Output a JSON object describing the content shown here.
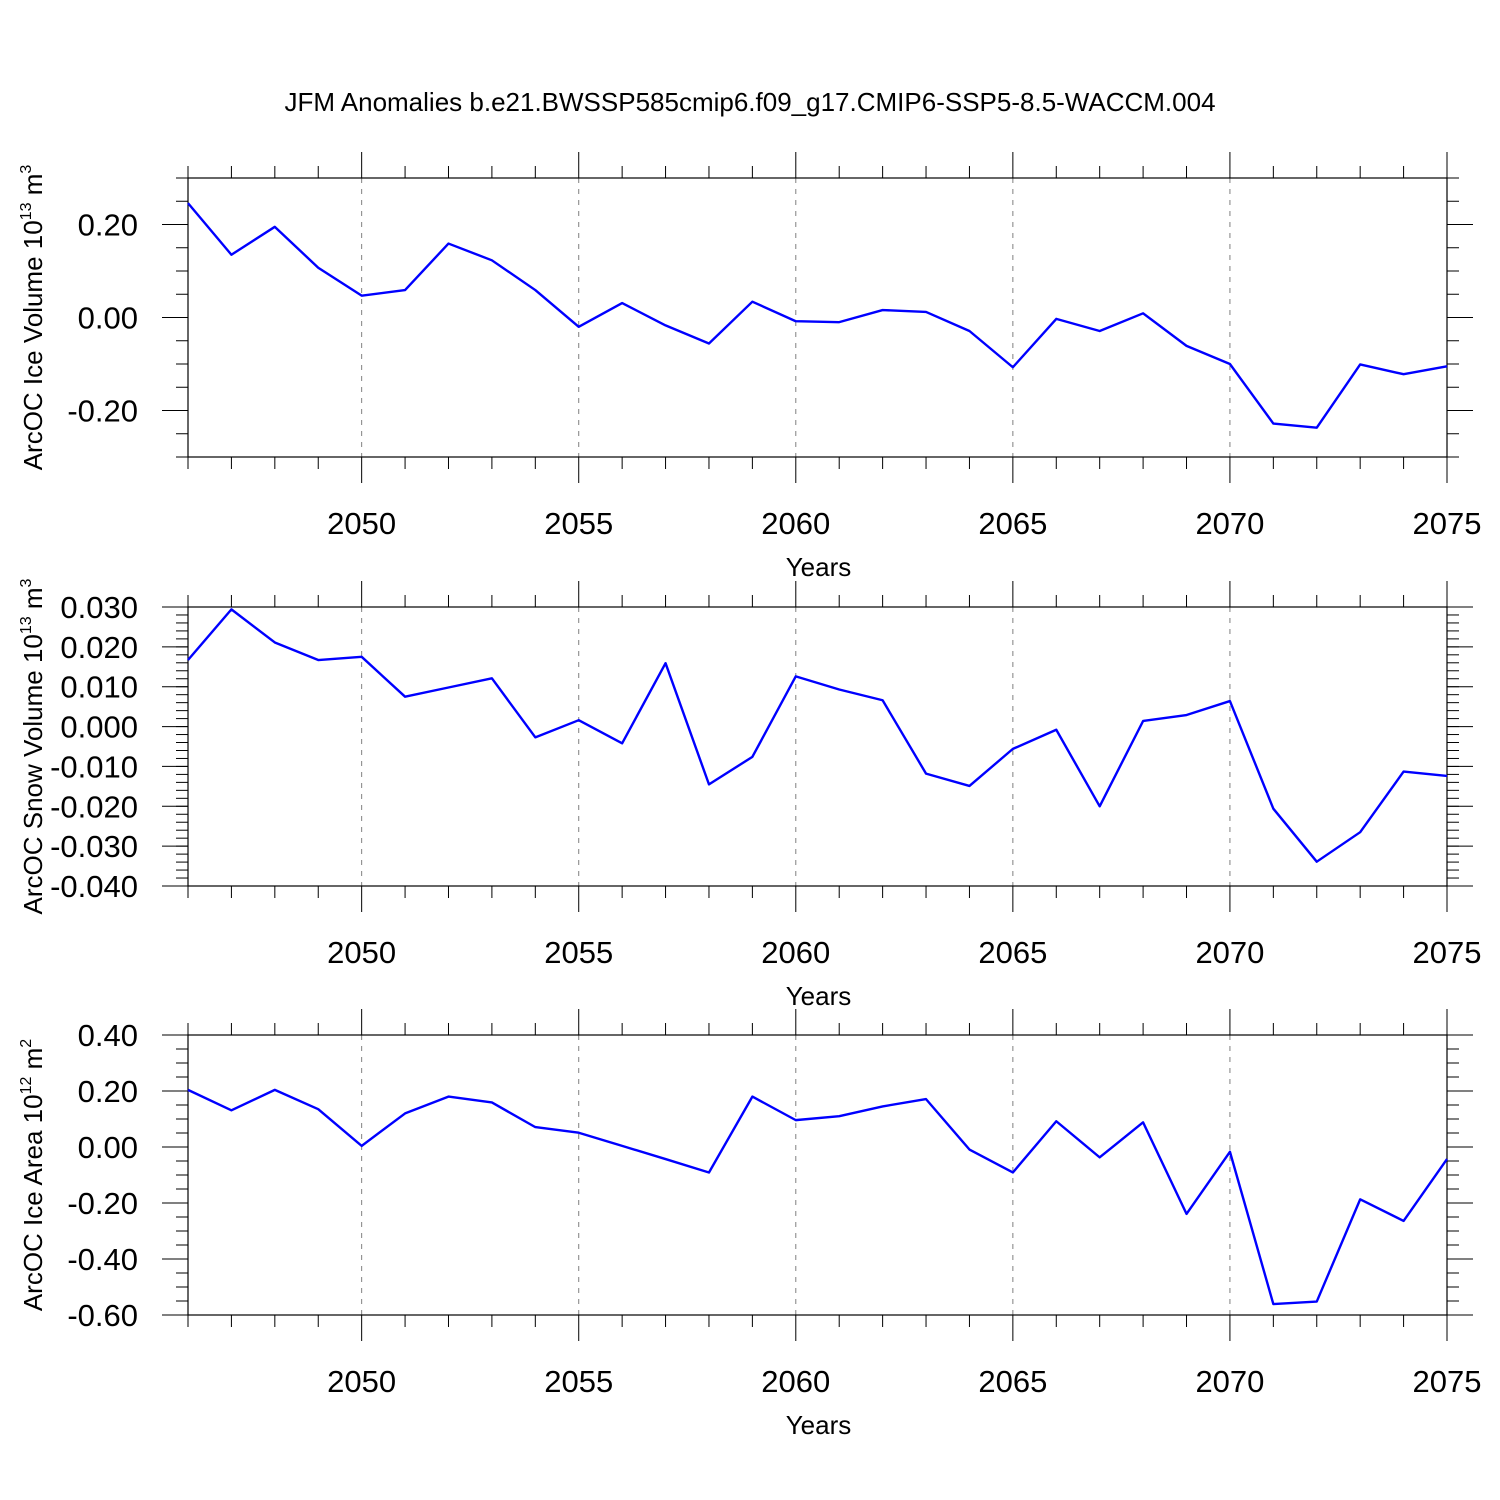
{
  "figure_title": "JFM Anomalies b.e21.BWSSP585cmip6.f09_g17.CMIP6-SSP5-8.5-WACCM.004",
  "colors": {
    "line": "#0000ff",
    "axis": "#000000",
    "grid": "#808080",
    "background": "#ffffff"
  },
  "chart_data": [
    {
      "type": "line",
      "title": "",
      "xlabel": "Years",
      "ylabel": {
        "text": "ArcOC Ice Volume 10",
        "sup": "13",
        "unit": " m",
        "unit_sup": "3"
      },
      "xlim": [
        2046,
        2075
      ],
      "ylim": [
        -0.3,
        0.3
      ],
      "x_ticks": [
        2050,
        2055,
        2060,
        2065,
        2070,
        2075
      ],
      "x_tick_labels": [
        "2050",
        "2055",
        "2060",
        "2065",
        "2070",
        "2075"
      ],
      "y_ticks": [
        -0.2,
        0.0,
        0.2
      ],
      "y_tick_labels": [
        "-0.20",
        "0.00",
        "0.20"
      ],
      "y_minor_step": 0.05,
      "grid": "vertical dashed at major x ticks",
      "x": [
        2046,
        2047,
        2048,
        2049,
        2050,
        2051,
        2052,
        2053,
        2054,
        2055,
        2056,
        2057,
        2058,
        2059,
        2060,
        2061,
        2062,
        2063,
        2064,
        2065,
        2066,
        2067,
        2068,
        2069,
        2070,
        2071,
        2072,
        2073,
        2074,
        2075
      ],
      "series": [
        {
          "values": [
            0.246,
            0.135,
            0.195,
            0.107,
            0.047,
            0.059,
            0.159,
            0.123,
            0.059,
            -0.02,
            0.031,
            -0.017,
            -0.056,
            0.034,
            -0.008,
            -0.01,
            0.016,
            0.012,
            -0.029,
            -0.107,
            -0.003,
            -0.029,
            0.009,
            -0.061,
            -0.1,
            -0.228,
            -0.237,
            -0.101,
            -0.122,
            -0.105
          ]
        }
      ]
    },
    {
      "type": "line",
      "title": "",
      "xlabel": "Years",
      "ylabel": {
        "text": "ArcOC Snow Volume 10",
        "sup": "13",
        "unit": " m",
        "unit_sup": "3"
      },
      "xlim": [
        2046,
        2075
      ],
      "ylim": [
        -0.04,
        0.03
      ],
      "x_ticks": [
        2050,
        2055,
        2060,
        2065,
        2070,
        2075
      ],
      "x_tick_labels": [
        "2050",
        "2055",
        "2060",
        "2065",
        "2070",
        "2075"
      ],
      "y_ticks": [
        -0.04,
        -0.03,
        -0.02,
        -0.01,
        0.0,
        0.01,
        0.02,
        0.03
      ],
      "y_tick_labels": [
        "-0.040",
        "-0.030",
        "-0.020",
        "-0.010",
        "0.000",
        "0.010",
        "0.020",
        "0.030"
      ],
      "y_minor_step": 0.002,
      "grid": "vertical dashed at major x ticks",
      "x": [
        2046,
        2047,
        2048,
        2049,
        2050,
        2051,
        2052,
        2053,
        2054,
        2055,
        2056,
        2057,
        2058,
        2059,
        2060,
        2061,
        2062,
        2063,
        2064,
        2065,
        2066,
        2067,
        2068,
        2069,
        2070,
        2071,
        2072,
        2073,
        2074,
        2075
      ],
      "series": [
        {
          "values": [
            0.0167,
            0.0294,
            0.0211,
            0.0167,
            0.0175,
            0.0075,
            0.0098,
            0.0121,
            -0.0027,
            0.0016,
            -0.0042,
            0.0159,
            -0.0145,
            -0.0076,
            0.0126,
            0.0093,
            0.0066,
            -0.0118,
            -0.0149,
            -0.0056,
            -0.0008,
            -0.02,
            0.0014,
            0.0029,
            0.0064,
            -0.0206,
            -0.0339,
            -0.0265,
            -0.0113,
            -0.0124
          ]
        }
      ]
    },
    {
      "type": "line",
      "title": "",
      "xlabel": "Years",
      "ylabel": {
        "text": "ArcOC Ice Area 10",
        "sup": "12",
        "unit": " m",
        "unit_sup": "2"
      },
      "xlim": [
        2046,
        2075
      ],
      "ylim": [
        -0.6,
        0.4
      ],
      "x_ticks": [
        2050,
        2055,
        2060,
        2065,
        2070,
        2075
      ],
      "x_tick_labels": [
        "2050",
        "2055",
        "2060",
        "2065",
        "2070",
        "2075"
      ],
      "y_ticks": [
        -0.6,
        -0.4,
        -0.2,
        0.0,
        0.2,
        0.4
      ],
      "y_tick_labels": [
        "-0.60",
        "-0.40",
        "-0.20",
        "0.00",
        "0.20",
        "0.40"
      ],
      "y_minor_step": 0.05,
      "grid": "vertical dashed at major x ticks",
      "x": [
        2046,
        2047,
        2048,
        2049,
        2050,
        2051,
        2052,
        2053,
        2054,
        2055,
        2056,
        2057,
        2058,
        2059,
        2060,
        2061,
        2062,
        2063,
        2064,
        2065,
        2066,
        2067,
        2068,
        2069,
        2070,
        2071,
        2072,
        2073,
        2074,
        2075
      ],
      "series": [
        {
          "values": [
            0.204,
            0.131,
            0.204,
            0.135,
            0.004,
            0.12,
            0.18,
            0.159,
            0.071,
            0.051,
            0.004,
            -0.043,
            -0.091,
            0.18,
            0.096,
            0.11,
            0.145,
            0.171,
            -0.009,
            -0.091,
            0.092,
            -0.037,
            0.088,
            -0.239,
            -0.017,
            -0.561,
            -0.552,
            -0.187,
            -0.264,
            -0.043
          ]
        }
      ]
    }
  ]
}
